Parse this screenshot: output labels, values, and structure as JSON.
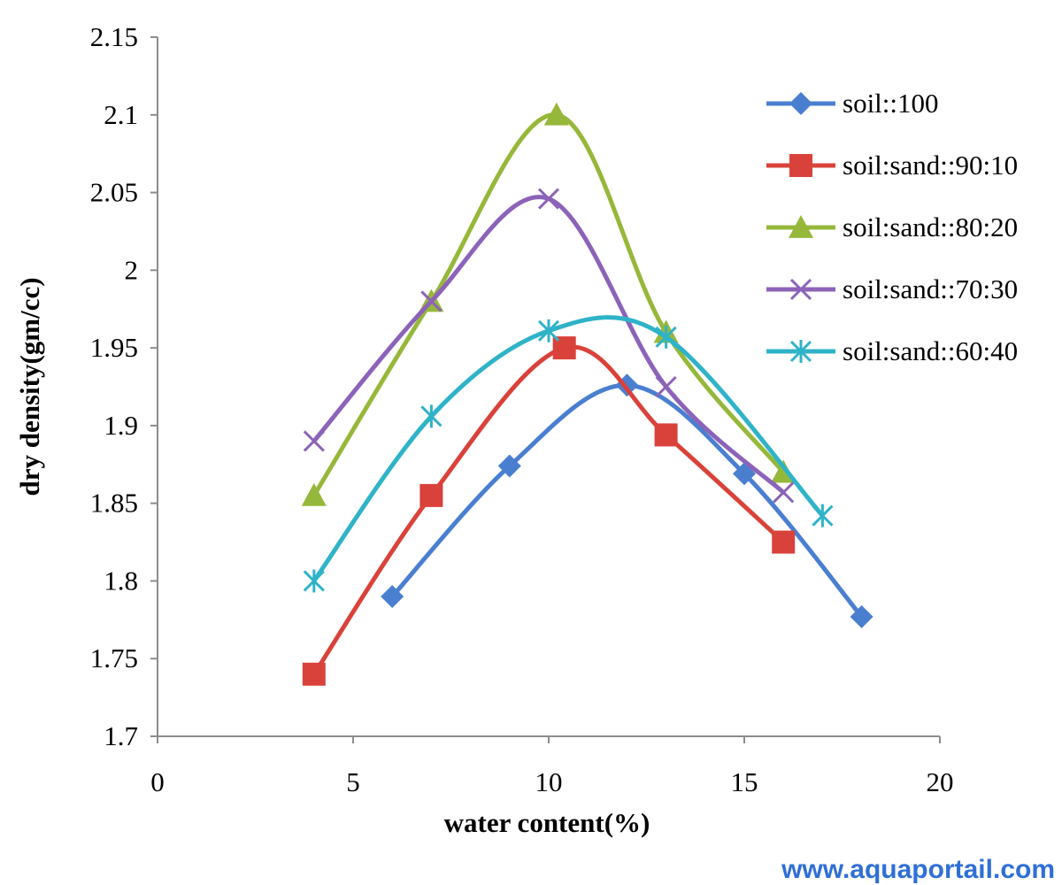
{
  "chart_data": {
    "type": "line",
    "smoothed": true,
    "xlabel": "water content(%)",
    "ylabel": "dry density(gm/cc)",
    "xlim": [
      0,
      20
    ],
    "ylim": [
      1.7,
      2.15
    ],
    "xticks": [
      0,
      5,
      10,
      15,
      20
    ],
    "yticks": [
      1.7,
      1.75,
      1.8,
      1.85,
      1.9,
      1.95,
      2.0,
      2.05,
      2.1,
      2.15
    ],
    "xtick_labels": [
      "0",
      "5",
      "10",
      "15",
      "20"
    ],
    "ytick_labels": [
      "1.7",
      "1.75",
      "1.8",
      "1.85",
      "1.9",
      "1.95",
      "2",
      "2.05",
      "2.1",
      "2.15"
    ],
    "grid": false,
    "legend_position": "right",
    "series": [
      {
        "name": "soil::100",
        "color": "#4a7fd0",
        "marker": "diamond",
        "x": [
          6,
          9,
          12,
          15,
          18
        ],
        "y": [
          1.79,
          1.874,
          1.926,
          1.869,
          1.777
        ]
      },
      {
        "name": "soil:sand::90:10",
        "color": "#d9423a",
        "marker": "square",
        "x": [
          4,
          7,
          10.4,
          13,
          16
        ],
        "y": [
          1.74,
          1.855,
          1.95,
          1.894,
          1.825
        ]
      },
      {
        "name": "soil:sand::80:20",
        "color": "#96b83a",
        "marker": "triangle",
        "x": [
          4,
          7,
          10.2,
          13,
          16
        ],
        "y": [
          1.855,
          1.98,
          2.1,
          1.96,
          1.87
        ]
      },
      {
        "name": "soil:sand::70:30",
        "color": "#8c63b8",
        "marker": "x",
        "x": [
          4,
          7,
          10,
          13,
          16
        ],
        "y": [
          1.89,
          1.98,
          2.046,
          1.925,
          1.857
        ]
      },
      {
        "name": "soil:sand::60:40",
        "color": "#2fb3c8",
        "marker": "asterisk",
        "x": [
          4,
          7,
          10,
          13,
          17
        ],
        "y": [
          1.8,
          1.906,
          1.961,
          1.957,
          1.842
        ]
      }
    ]
  },
  "watermark": "www.aquaportail.com"
}
